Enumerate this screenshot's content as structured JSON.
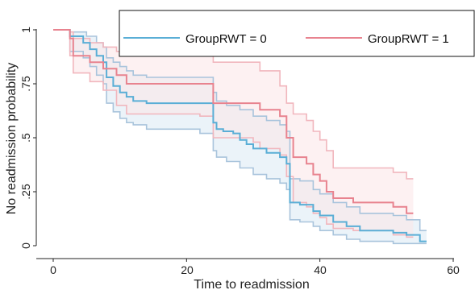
{
  "chart_data": {
    "type": "line",
    "title": "",
    "xlabel": "Time to readmission",
    "ylabel": "No readmission probability",
    "xlim": [
      0,
      60
    ],
    "ylim": [
      0,
      1
    ],
    "x_ticks": [
      "0",
      "20",
      "40",
      "60"
    ],
    "y_ticks": [
      "0",
      ".25",
      ".5",
      ".75",
      "1"
    ],
    "grid": false,
    "legend": "top-right",
    "colors": {
      "group0": "#5aaed6",
      "group1": "#e8838f",
      "ci0_fill": "#dbe9f4",
      "ci1_fill": "#fbe6e8",
      "ci0_line": "#a9c4dc",
      "ci1_line": "#f1b6bd"
    },
    "series": [
      {
        "name": "GroupRWT = 0",
        "steps": [
          [
            0,
            1.0
          ],
          [
            1.5,
            1.0
          ],
          [
            2.5,
            0.97
          ],
          [
            4.5,
            0.94
          ],
          [
            5.5,
            0.91
          ],
          [
            6.5,
            0.88
          ],
          [
            7.5,
            0.85
          ],
          [
            8,
            0.78
          ],
          [
            9,
            0.74
          ],
          [
            10,
            0.71
          ],
          [
            11,
            0.69
          ],
          [
            12,
            0.67
          ],
          [
            14,
            0.66
          ],
          [
            22,
            0.66
          ],
          [
            24,
            0.57
          ],
          [
            24.5,
            0.54
          ],
          [
            25.5,
            0.53
          ],
          [
            27,
            0.52
          ],
          [
            28,
            0.49
          ],
          [
            29,
            0.47
          ],
          [
            30,
            0.45
          ],
          [
            32,
            0.43
          ],
          [
            34,
            0.41
          ],
          [
            35,
            0.38
          ],
          [
            35.5,
            0.2
          ],
          [
            37,
            0.19
          ],
          [
            39,
            0.16
          ],
          [
            40,
            0.14
          ],
          [
            42,
            0.11
          ],
          [
            44,
            0.09
          ],
          [
            46,
            0.07
          ],
          [
            51,
            0.06
          ],
          [
            53,
            0.05
          ],
          [
            55,
            0.02
          ],
          [
            56,
            0.02
          ]
        ],
        "ci_upper": [
          [
            0,
            1.0
          ],
          [
            1.5,
            1.0
          ],
          [
            2.5,
            0.99
          ],
          [
            5,
            0.97
          ],
          [
            6.5,
            0.94
          ],
          [
            7.5,
            0.92
          ],
          [
            8,
            0.87
          ],
          [
            9,
            0.85
          ],
          [
            10,
            0.83
          ],
          [
            11,
            0.81
          ],
          [
            12,
            0.79
          ],
          [
            14,
            0.78
          ],
          [
            22,
            0.78
          ],
          [
            24,
            0.71
          ],
          [
            24.5,
            0.67
          ],
          [
            26,
            0.65
          ],
          [
            28,
            0.63
          ],
          [
            30,
            0.6
          ],
          [
            32,
            0.58
          ],
          [
            34,
            0.56
          ],
          [
            35,
            0.53
          ],
          [
            35.5,
            0.31
          ],
          [
            37,
            0.3
          ],
          [
            39,
            0.26
          ],
          [
            40,
            0.24
          ],
          [
            42,
            0.2
          ],
          [
            44,
            0.18
          ],
          [
            46,
            0.15
          ],
          [
            51,
            0.14
          ],
          [
            53,
            0.12
          ],
          [
            55,
            0.07
          ],
          [
            56,
            0.07
          ]
        ],
        "ci_lower": [
          [
            0,
            1.0
          ],
          [
            1.5,
            1.0
          ],
          [
            2.5,
            0.9
          ],
          [
            4.5,
            0.87
          ],
          [
            5.5,
            0.83
          ],
          [
            6.5,
            0.79
          ],
          [
            7.5,
            0.75
          ],
          [
            8,
            0.66
          ],
          [
            9,
            0.62
          ],
          [
            10,
            0.59
          ],
          [
            11,
            0.57
          ],
          [
            12,
            0.56
          ],
          [
            14,
            0.54
          ],
          [
            22,
            0.52
          ],
          [
            24,
            0.44
          ],
          [
            24.5,
            0.41
          ],
          [
            26,
            0.39
          ],
          [
            28,
            0.36
          ],
          [
            30,
            0.33
          ],
          [
            32,
            0.31
          ],
          [
            34,
            0.29
          ],
          [
            35,
            0.26
          ],
          [
            35.5,
            0.12
          ],
          [
            37,
            0.11
          ],
          [
            39,
            0.09
          ],
          [
            40,
            0.07
          ],
          [
            42,
            0.05
          ],
          [
            44,
            0.03
          ],
          [
            46,
            0.02
          ],
          [
            51,
            0.01
          ],
          [
            56,
            0.01
          ]
        ]
      },
      {
        "name": "GroupRWT = 1",
        "steps": [
          [
            0,
            1.0
          ],
          [
            1.5,
            1.0
          ],
          [
            2.5,
            0.96
          ],
          [
            3,
            0.88
          ],
          [
            5.5,
            0.85
          ],
          [
            7.5,
            0.82
          ],
          [
            9.5,
            0.79
          ],
          [
            11,
            0.75
          ],
          [
            22,
            0.75
          ],
          [
            24,
            0.66
          ],
          [
            30,
            0.66
          ],
          [
            31,
            0.63
          ],
          [
            34,
            0.6
          ],
          [
            34.5,
            0.6
          ],
          [
            35,
            0.5
          ],
          [
            36,
            0.41
          ],
          [
            38,
            0.38
          ],
          [
            39,
            0.33
          ],
          [
            40,
            0.3
          ],
          [
            41,
            0.25
          ],
          [
            42,
            0.22
          ],
          [
            45,
            0.2
          ],
          [
            51,
            0.18
          ],
          [
            53,
            0.15
          ],
          [
            54,
            0.15
          ]
        ],
        "ci_upper": [
          [
            0,
            1.0
          ],
          [
            1.5,
            1.0
          ],
          [
            2.5,
            0.99
          ],
          [
            3,
            0.96
          ],
          [
            5.5,
            0.94
          ],
          [
            7.5,
            0.92
          ],
          [
            9.5,
            0.9
          ],
          [
            11,
            0.88
          ],
          [
            22,
            0.88
          ],
          [
            24,
            0.85
          ],
          [
            30,
            0.85
          ],
          [
            31,
            0.81
          ],
          [
            34,
            0.74
          ],
          [
            35,
            0.66
          ],
          [
            36,
            0.61
          ],
          [
            38,
            0.58
          ],
          [
            39,
            0.53
          ],
          [
            40,
            0.49
          ],
          [
            41,
            0.44
          ],
          [
            42,
            0.36
          ],
          [
            45,
            0.36
          ],
          [
            51,
            0.34
          ],
          [
            53,
            0.31
          ],
          [
            54,
            0.31
          ]
        ],
        "ci_lower": [
          [
            0,
            1.0
          ],
          [
            1.5,
            1.0
          ],
          [
            2.5,
            0.88
          ],
          [
            3,
            0.8
          ],
          [
            5.5,
            0.76
          ],
          [
            7.5,
            0.72
          ],
          [
            9.5,
            0.65
          ],
          [
            11,
            0.61
          ],
          [
            22,
            0.6
          ],
          [
            24,
            0.5
          ],
          [
            30,
            0.48
          ],
          [
            31,
            0.45
          ],
          [
            34,
            0.42
          ],
          [
            35,
            0.32
          ],
          [
            36,
            0.2
          ],
          [
            38,
            0.18
          ],
          [
            39,
            0.15
          ],
          [
            40,
            0.13
          ],
          [
            41,
            0.1
          ],
          [
            42,
            0.08
          ],
          [
            45,
            0.07
          ],
          [
            51,
            0.05
          ],
          [
            53,
            0.04
          ],
          [
            54,
            0.04
          ]
        ]
      }
    ]
  }
}
